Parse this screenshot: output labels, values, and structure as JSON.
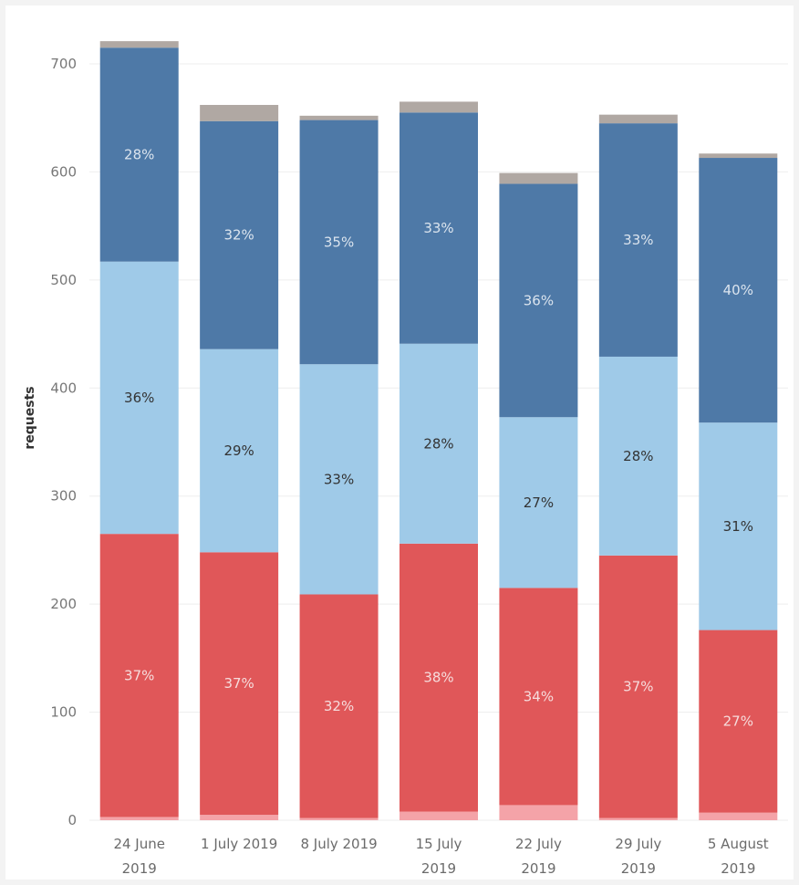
{
  "chart_data": {
    "type": "bar",
    "stacked": true,
    "ylabel": "requests",
    "xlabel": "",
    "ylim": [
      0,
      700
    ],
    "yticks": [
      0,
      100,
      200,
      300,
      400,
      500,
      600,
      700
    ],
    "grid": true,
    "categories": [
      [
        "24 June",
        "2019"
      ],
      [
        "1 July 2019"
      ],
      [
        "8 July 2019"
      ],
      [
        "15 July",
        "2019"
      ],
      [
        "22 July",
        "2019"
      ],
      [
        "29 July",
        "2019"
      ],
      [
        "5 August",
        "2019"
      ]
    ],
    "series": [
      {
        "color": "#f4a3a8",
        "values": [
          3,
          5,
          2,
          8,
          14,
          2,
          7
        ],
        "labels": [
          "",
          "",
          "",
          "",
          "",
          "",
          ""
        ],
        "label_color": "#ffffff"
      },
      {
        "color": "#e05759",
        "values": [
          262,
          243,
          207,
          248,
          201,
          243,
          169
        ],
        "labels": [
          "37%",
          "37%",
          "32%",
          "38%",
          "34%",
          "37%",
          "27%"
        ],
        "label_color": "#f6dcdc"
      },
      {
        "color": "#9fcae8",
        "values": [
          252,
          188,
          213,
          185,
          158,
          184,
          192
        ],
        "labels": [
          "36%",
          "29%",
          "33%",
          "28%",
          "27%",
          "28%",
          "31%"
        ],
        "label_color": "#333333"
      },
      {
        "color": "#4e79a7",
        "values": [
          198,
          211,
          226,
          214,
          216,
          216,
          245
        ],
        "labels": [
          "28%",
          "32%",
          "35%",
          "33%",
          "36%",
          "33%",
          "40%"
        ],
        "label_color": "#dbe4ee"
      },
      {
        "color": "#b0a8a3",
        "values": [
          6,
          15,
          4,
          10,
          10,
          8,
          4
        ],
        "labels": [
          "",
          "",
          "",
          "",
          "",
          "",
          ""
        ],
        "label_color": "#ffffff"
      }
    ]
  }
}
